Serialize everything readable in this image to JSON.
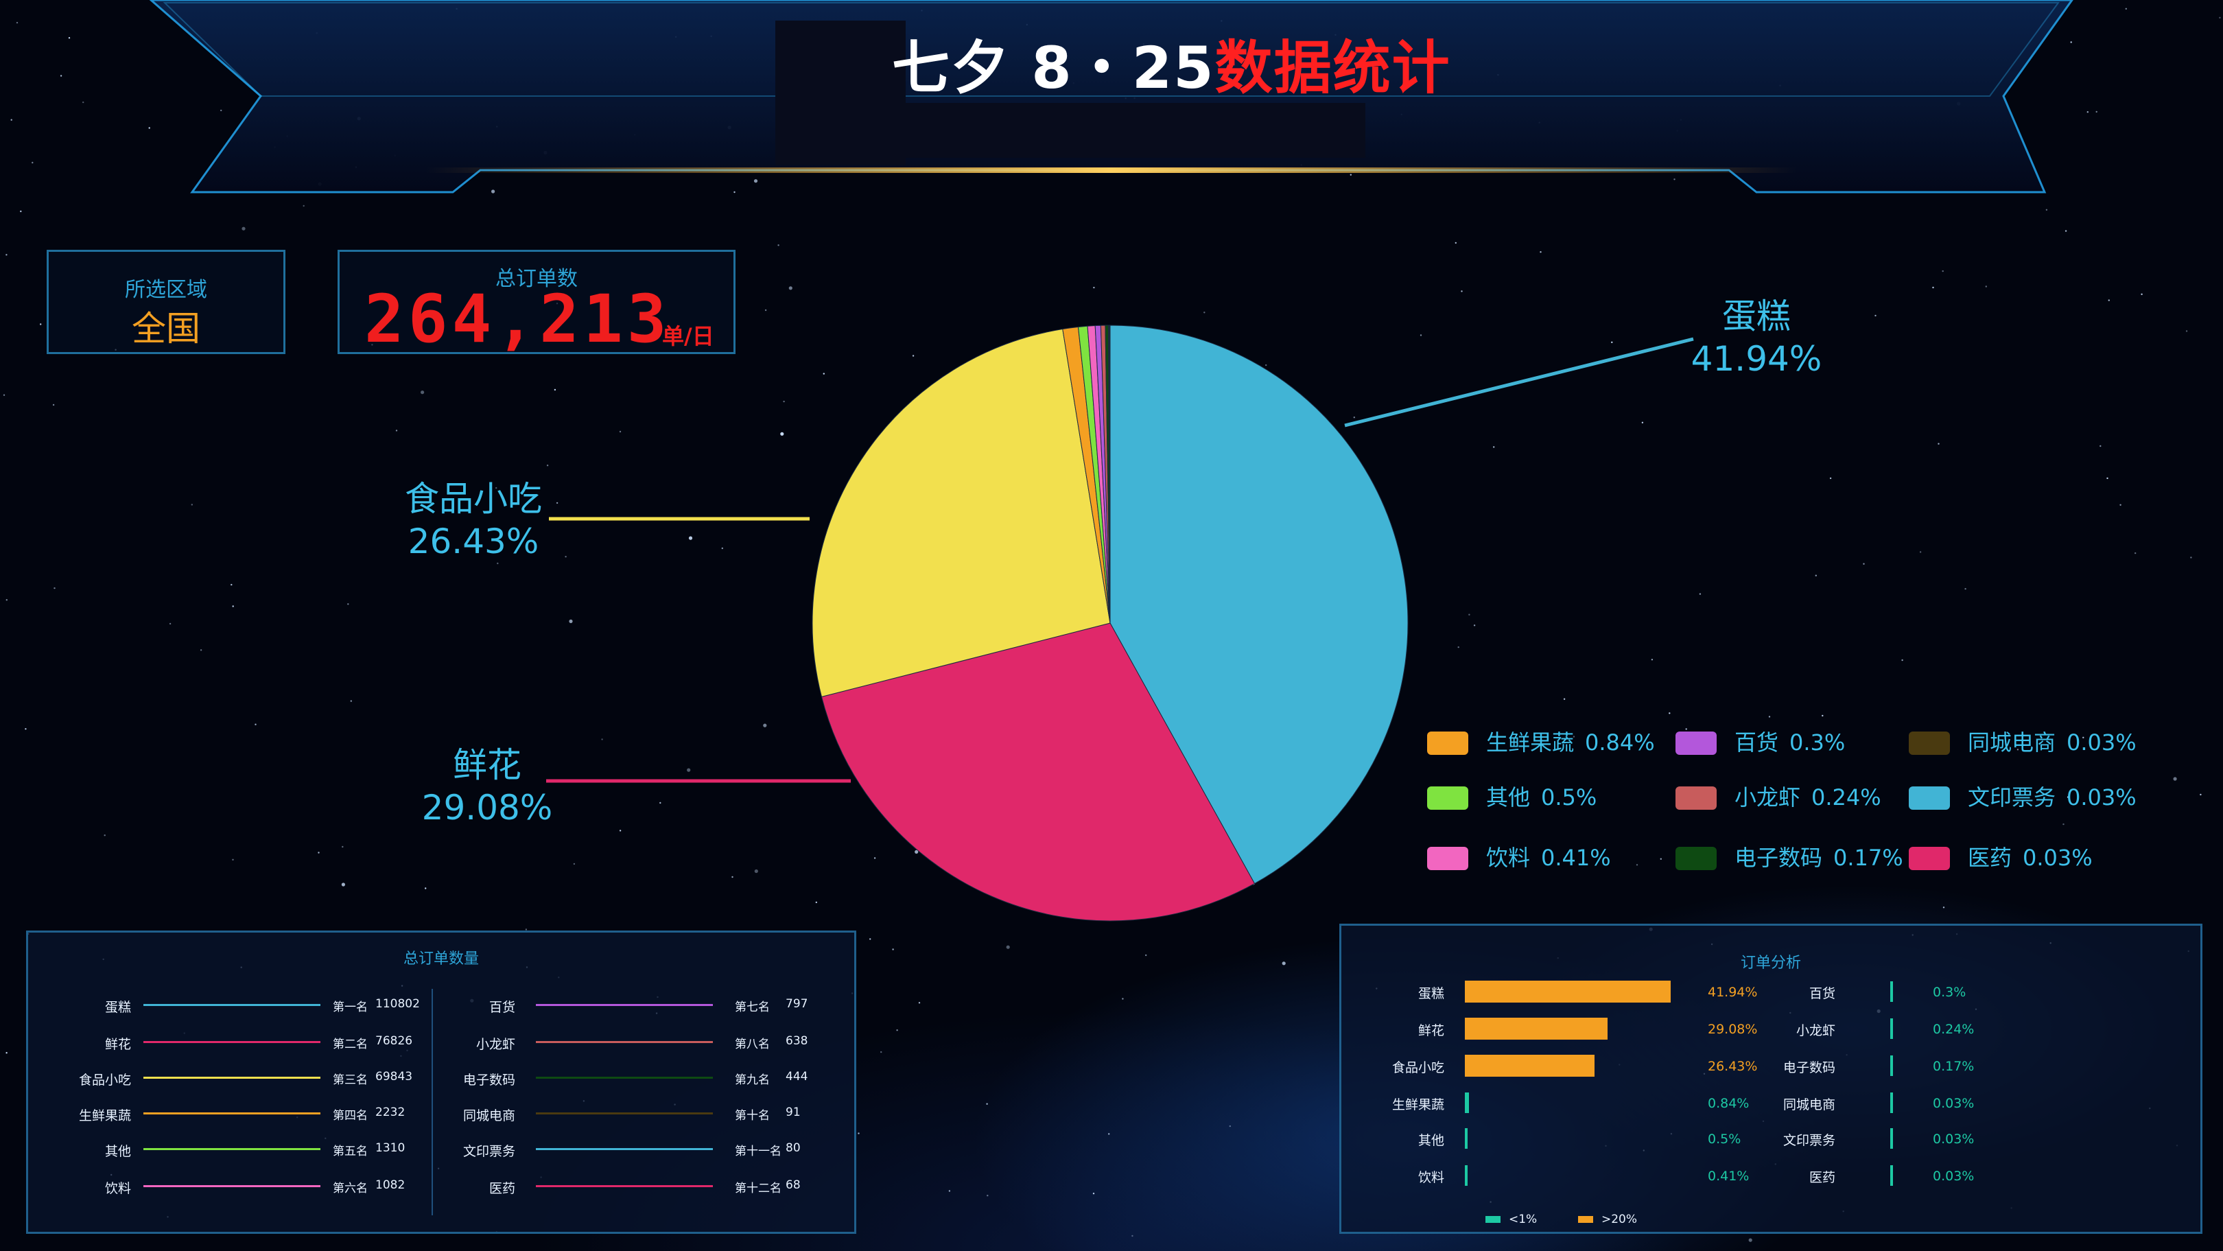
{
  "header": {
    "title_white": "七夕 8・25",
    "title_red": "数据统计"
  },
  "region": {
    "label": "所选区域",
    "value": "全国"
  },
  "total": {
    "label": "总订单数",
    "value": "264,213",
    "unit": "单/日"
  },
  "colors": {
    "cake": "#41b4d5",
    "flower": "#e0286a",
    "snack": "#f2e04e",
    "fresh": "#f4a022",
    "other": "#7fe340",
    "drink": "#f266c0",
    "general": "#b357db",
    "crayfish": "#c85c5c",
    "digital": "#0e4a12",
    "ecommerce": "#4a3a10",
    "ticket": "#41b4d5",
    "medicine": "#e0286a",
    "accent": "#3ec0ea",
    "bar_high": "#f4a022",
    "bar_low": "#1dc9a4"
  },
  "chart_data": [
    {
      "type": "pie",
      "title": "",
      "slices": [
        {
          "name": "蛋糕",
          "percent": 41.94,
          "color": "#41b4d5",
          "label": "41.94%"
        },
        {
          "name": "鲜花",
          "percent": 29.08,
          "color": "#e0286a",
          "label": "29.08%"
        },
        {
          "name": "食品小吃",
          "percent": 26.43,
          "color": "#f2e04e",
          "label": "26.43%"
        },
        {
          "name": "生鲜果蔬",
          "percent": 0.84,
          "color": "#f4a022",
          "label": "0.84%"
        },
        {
          "name": "其他",
          "percent": 0.5,
          "color": "#7fe340",
          "label": "0.5%"
        },
        {
          "name": "饮料",
          "percent": 0.41,
          "color": "#f266c0",
          "label": "0.41%"
        },
        {
          "name": "百货",
          "percent": 0.3,
          "color": "#b357db",
          "label": "0.3%"
        },
        {
          "name": "小龙虾",
          "percent": 0.24,
          "color": "#c85c5c",
          "label": "0.24%"
        },
        {
          "name": "电子数码",
          "percent": 0.17,
          "color": "#0e4a12",
          "label": "0.17%"
        },
        {
          "name": "同城电商",
          "percent": 0.03,
          "color": "#4a3a10",
          "label": "0.03%"
        },
        {
          "name": "文印票务",
          "percent": 0.03,
          "color": "#41b4d5",
          "label": "0.03%"
        },
        {
          "name": "医药",
          "percent": 0.03,
          "color": "#e0286a",
          "label": "0.03%"
        }
      ],
      "legend_placement": "bottom-right"
    },
    {
      "type": "table",
      "title": "总订单数量",
      "rows": [
        {
          "name": "蛋糕",
          "rank": "第一名",
          "count": "110802",
          "color": "#41b4d5"
        },
        {
          "name": "鲜花",
          "rank": "第二名",
          "count": "76826",
          "color": "#e0286a"
        },
        {
          "name": "食品小吃",
          "rank": "第三名",
          "count": "69843",
          "color": "#f2e04e"
        },
        {
          "name": "生鲜果蔬",
          "rank": "第四名",
          "count": "2232",
          "color": "#f4a022"
        },
        {
          "name": "其他",
          "rank": "第五名",
          "count": "1310",
          "color": "#7fe340"
        },
        {
          "name": "饮料",
          "rank": "第六名",
          "count": "1082",
          "color": "#f266c0"
        },
        {
          "name": "百货",
          "rank": "第七名",
          "count": "797",
          "color": "#b357db"
        },
        {
          "name": "小龙虾",
          "rank": "第八名",
          "count": "638",
          "color": "#c85c5c"
        },
        {
          "name": "电子数码",
          "rank": "第九名",
          "count": "444",
          "color": "#0e4a12"
        },
        {
          "name": "同城电商",
          "rank": "第十名",
          "count": "91",
          "color": "#4a3a10"
        },
        {
          "name": "文印票务",
          "rank": "第十一名",
          "count": "80",
          "color": "#41b4d5"
        },
        {
          "name": "医药",
          "rank": "第十二名",
          "count": "68",
          "color": "#e0286a"
        }
      ]
    },
    {
      "type": "bar",
      "title": "订单分析",
      "orientation": "horizontal",
      "xlim": [
        0,
        41.94
      ],
      "categories": [
        "蛋糕",
        "鲜花",
        "食品小吃",
        "生鲜果蔬",
        "其他",
        "饮料",
        "百货",
        "小龙虾",
        "电子数码",
        "同城电商",
        "文印票务",
        "医药"
      ],
      "values": [
        41.94,
        29.08,
        26.43,
        0.84,
        0.5,
        0.41,
        0.3,
        0.24,
        0.17,
        0.03,
        0.03,
        0.03
      ],
      "labels": [
        "41.94%",
        "29.08%",
        "26.43%",
        "0.84%",
        "0.5%",
        "0.41%",
        "0.3%",
        "0.24%",
        "0.17%",
        "0.03%",
        "0.03%",
        "0.03%"
      ],
      "legend": [
        {
          "name": "<1%",
          "color": "#1dc9a4"
        },
        {
          "name": ">20%",
          "color": "#f4a022"
        }
      ]
    }
  ]
}
